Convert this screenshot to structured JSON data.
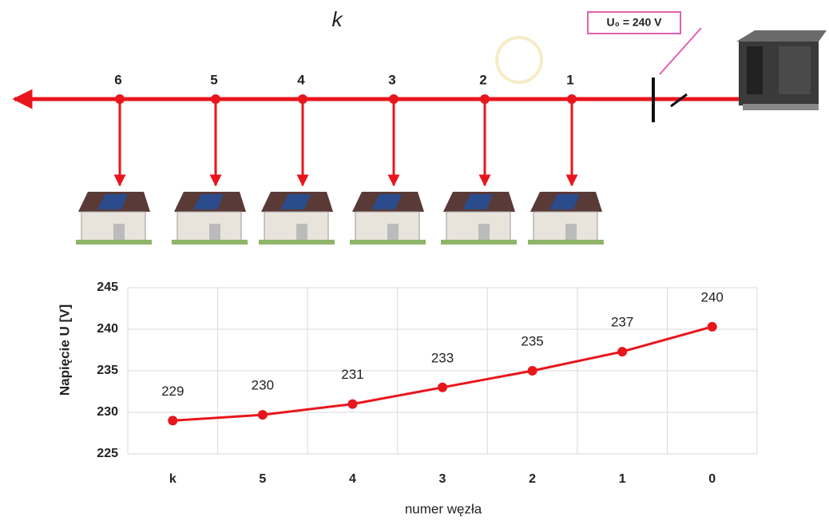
{
  "diagram": {
    "end_label": "k",
    "source_label": "U₀ = 240  V",
    "nodes": [
      "6",
      "5",
      "4",
      "3",
      "2",
      "1"
    ]
  },
  "chart_data": {
    "type": "line",
    "categories": [
      "k",
      "5",
      "4",
      "3",
      "2",
      "1",
      "0"
    ],
    "series": [
      {
        "color": "#e8161c",
        "values": [
          229,
          229.7,
          231,
          233,
          235,
          237.3,
          240.3
        ],
        "value_labels": [
          "229",
          "230",
          "231",
          "233",
          "235",
          "237",
          "240"
        ]
      }
    ],
    "ylim": [
      225,
      245
    ],
    "yticks": [
      225,
      230,
      235,
      240,
      245
    ],
    "grid": true,
    "y_label": "Napięcie U [V]",
    "x_label": "numer węzła"
  }
}
